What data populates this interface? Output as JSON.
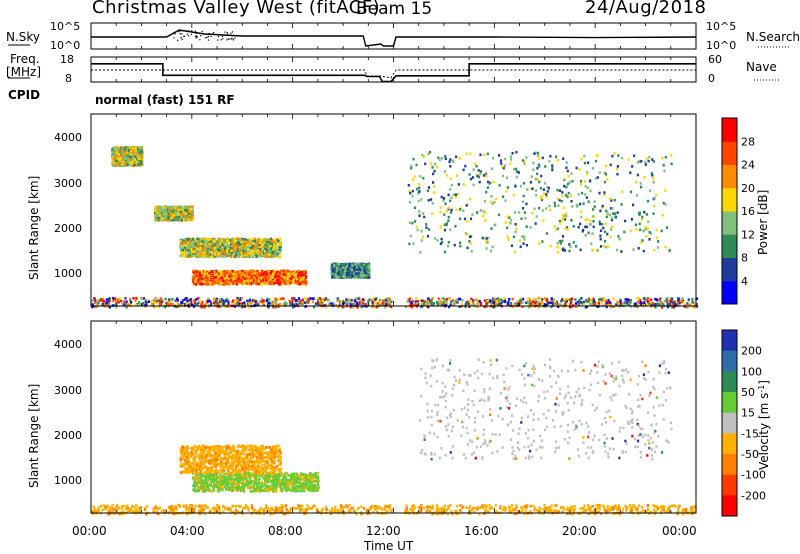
{
  "header": {
    "station": "Christmas Valley West (fitACF)",
    "beam": "Beam 15",
    "date": "24/Aug/2018"
  },
  "labels": {
    "nsky": "N.Sky",
    "freq": "Freq.",
    "freq_unit": "[MHz]",
    "cpid": "CPID",
    "nsearch": "N.Search",
    "nave": "Nave",
    "mode": "normal (fast) 151 RF",
    "x_axis": "Time UT"
  },
  "chart_data": [
    {
      "type": "line",
      "id": "noise",
      "left_axis": {
        "label": "N.Sky",
        "ticks": [
          "10^5",
          "10^0"
        ]
      },
      "right_axis": {
        "label": "N.Search",
        "ticks": [
          "10^5",
          "10^0"
        ]
      },
      "x_range_hours": [
        0,
        24
      ],
      "series": [
        {
          "name": "N.Sky",
          "style": "solid",
          "x": [
            0,
            3,
            3.5,
            4.5,
            6,
            10.8,
            10.9,
            11.5,
            11.6,
            12,
            12.1,
            16,
            20,
            24
          ],
          "y": [
            0.45,
            0.45,
            0.8,
            0.6,
            0.5,
            0.5,
            0.0,
            0.1,
            0.0,
            0.0,
            0.45,
            0.45,
            0.42,
            0.45
          ]
        }
      ]
    },
    {
      "type": "line",
      "id": "frequency",
      "left_axis": {
        "label": "Freq. [MHz]",
        "ticks": [
          "18",
          "8"
        ]
      },
      "right_axis": {
        "label": "Nave",
        "ticks": [
          "60",
          "0"
        ]
      },
      "series": [
        {
          "name": "Freq",
          "style": "solid",
          "x": [
            0,
            2.85,
            2.85,
            10.85,
            10.95,
            11.45,
            11.55,
            11.9,
            12.1,
            15,
            15,
            24
          ],
          "y_mhz": [
            15.3,
            15.3,
            10.7,
            10.7,
            10.2,
            10.2,
            8.2,
            8.2,
            10.5,
            10.5,
            15.3,
            15.3
          ]
        },
        {
          "name": "Nave",
          "style": "dotted",
          "x": [
            0,
            10.85,
            10.95,
            11.5,
            11.9,
            12.1,
            24
          ],
          "y": [
            0.5,
            0.5,
            0.2,
            0.2,
            0.1,
            0.5,
            0.5
          ]
        }
      ]
    },
    {
      "type": "heatmap",
      "id": "power",
      "title": "",
      "ylabel": "Slant Range [km]",
      "y_ticks": [
        "1000",
        "2000",
        "3000",
        "4000"
      ],
      "ylim": [
        200,
        4400
      ],
      "xlim_hours": [
        0,
        24
      ],
      "colorbar": {
        "label": "Power [dB]",
        "ticks": [
          "4",
          "8",
          "12",
          "16",
          "20",
          "24",
          "28"
        ],
        "colors": [
          "#0000ff",
          "#1e3c9a",
          "#2e8b57",
          "#7fc07f",
          "#ffd700",
          "#ff8c00",
          "#ff4500",
          "#ff0000"
        ]
      },
      "regions": [
        {
          "t": [
            4.0,
            8.5
          ],
          "r": [
            700,
            1000
          ],
          "level": "high"
        },
        {
          "t": [
            3.5,
            7.5
          ],
          "r": [
            1300,
            1700
          ],
          "level": "medium"
        },
        {
          "t": [
            0,
            24
          ],
          "r": [
            200,
            400
          ],
          "level": "mixed"
        },
        {
          "t": [
            0.8,
            2.0
          ],
          "r": [
            3300,
            3700
          ],
          "level": "medium"
        },
        {
          "t": [
            2.5,
            4.0
          ],
          "r": [
            2100,
            2400
          ],
          "level": "medium"
        },
        {
          "t": [
            9.5,
            11.0
          ],
          "r": [
            850,
            1150
          ],
          "level": "low"
        },
        {
          "t": [
            12.5,
            23.0
          ],
          "r": [
            1400,
            3600
          ],
          "level": "patchy"
        }
      ]
    },
    {
      "type": "heatmap",
      "id": "velocity",
      "ylabel": "Slant Range [km]",
      "y_ticks": [
        "1000",
        "2000",
        "3000",
        "4000"
      ],
      "ylim": [
        200,
        4400
      ],
      "xlim_hours": [
        0,
        24
      ],
      "colorbar": {
        "label": "Velocity [m s^-1]",
        "ticks": [
          "200",
          "100",
          "50",
          "15",
          "-15",
          "-50",
          "-100",
          "-200"
        ],
        "colors": [
          "#2030b0",
          "#2f6fa8",
          "#2e8b57",
          "#66cc33",
          "#c0c0c0",
          "#ffb000",
          "#ff7f00",
          "#ff3a00",
          "#ff0000"
        ]
      },
      "regions": [
        {
          "t": [
            4.0,
            9.0
          ],
          "r": [
            700,
            1100
          ],
          "value": "green"
        },
        {
          "t": [
            3.5,
            7.5
          ],
          "r": [
            1100,
            1700
          ],
          "value": "orange"
        },
        {
          "t": [
            0,
            24
          ],
          "r": [
            200,
            400
          ],
          "value": "orange"
        },
        {
          "t": [
            13.0,
            23.0
          ],
          "r": [
            1400,
            3600
          ],
          "value": "grey"
        }
      ]
    }
  ],
  "x_ticks": [
    "00:00",
    "04:00",
    "08:00",
    "12:00",
    "16:00",
    "20:00",
    "00:00"
  ]
}
